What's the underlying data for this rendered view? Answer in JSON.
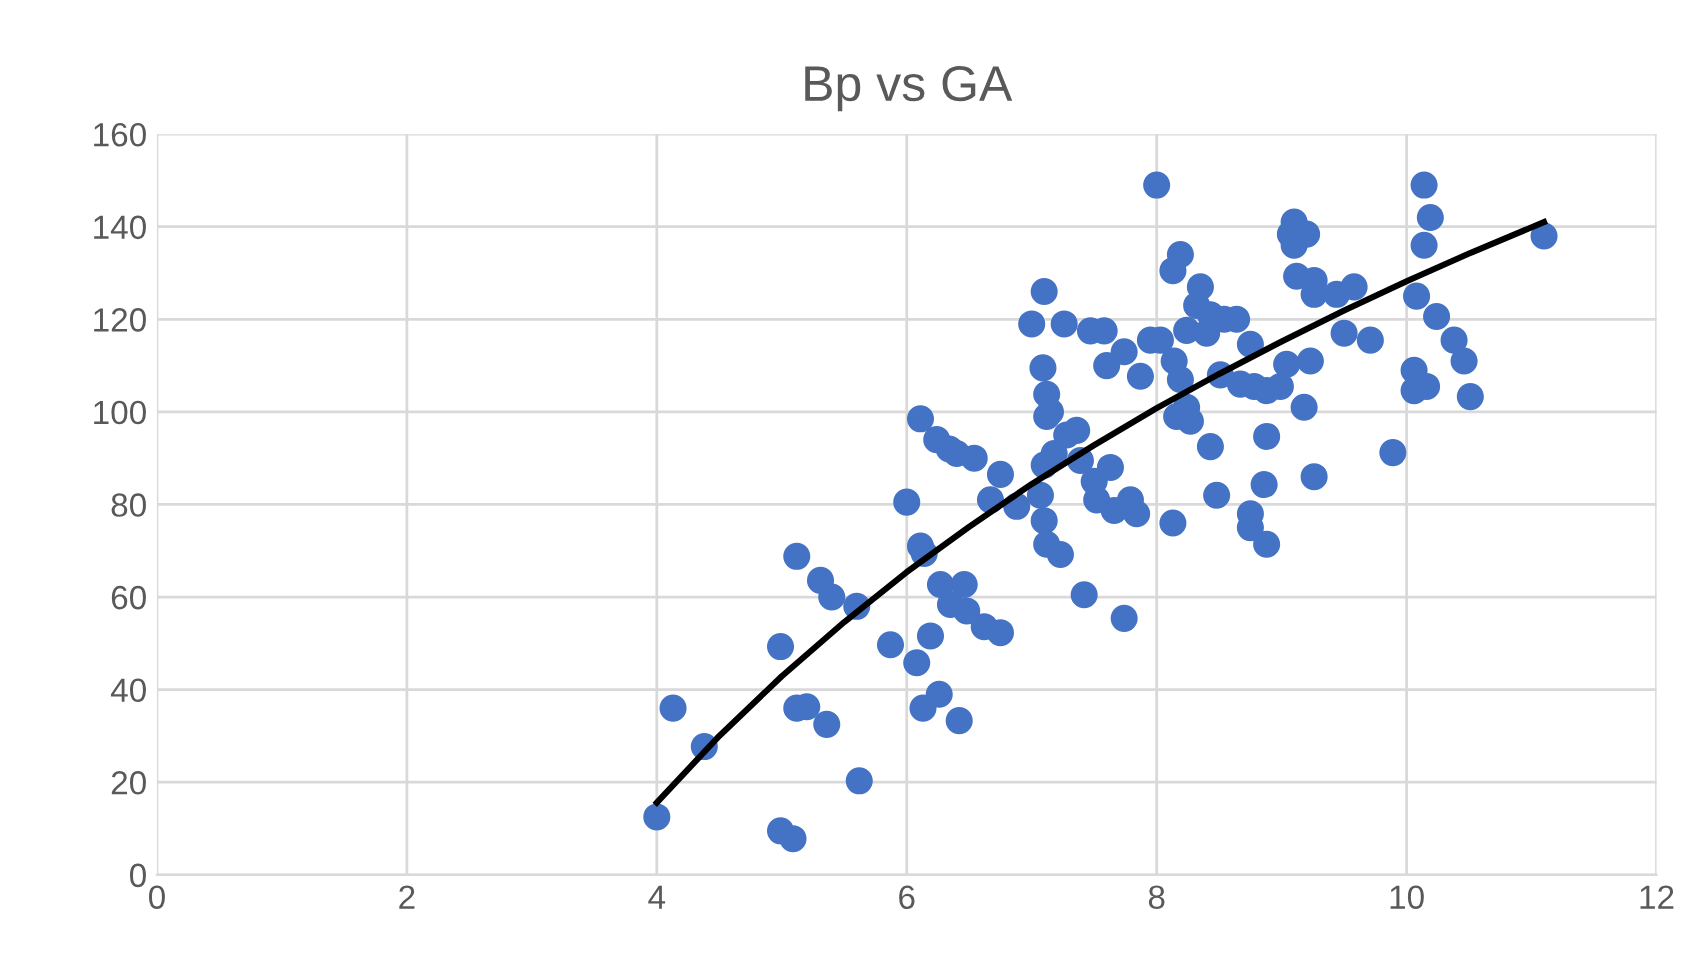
{
  "chart_data": {
    "type": "scatter",
    "title": "Bp vs GA",
    "xlim": [
      0,
      12
    ],
    "ylim": [
      0,
      160
    ],
    "xticks": [
      0,
      2,
      4,
      6,
      8,
      10,
      12
    ],
    "yticks": [
      0,
      20,
      40,
      60,
      80,
      100,
      120,
      140,
      160
    ],
    "grid": true,
    "series": [
      {
        "color": "#4472c4",
        "marker": "circle",
        "x": [
          4.0,
          4.13,
          4.38,
          4.99,
          4.99,
          5.09,
          5.12,
          5.12,
          5.2,
          5.31,
          5.4,
          5.36,
          5.6,
          5.62,
          5.87,
          6.0,
          6.08,
          6.11,
          6.14,
          6.11,
          6.13,
          6.19,
          6.26,
          6.24,
          6.27,
          6.34,
          6.35,
          6.4,
          6.42,
          6.46,
          6.48,
          6.54,
          6.62,
          6.67,
          6.75,
          6.75,
          6.88,
          7.0,
          7.09,
          7.1,
          7.1,
          7.07,
          7.1,
          7.12,
          7.12,
          7.12,
          7.15,
          7.23,
          7.18,
          7.28,
          7.26,
          7.36,
          7.39,
          7.42,
          7.47,
          7.5,
          7.52,
          7.58,
          7.6,
          7.63,
          7.66,
          7.74,
          7.74,
          7.79,
          7.84,
          7.87,
          7.95,
          8.0,
          8.03,
          8.13,
          8.14,
          8.19,
          8.19,
          8.24,
          8.27,
          8.16,
          8.24,
          8.35,
          8.32,
          8.4,
          8.43,
          8.43,
          8.48,
          8.13,
          8.51,
          8.54,
          8.64,
          8.67,
          8.75,
          8.78,
          8.88,
          8.88,
          8.86,
          8.75,
          8.75,
          8.88,
          8.99,
          9.04,
          9.1,
          9.07,
          9.1,
          9.2,
          9.12,
          9.26,
          9.23,
          9.18,
          9.26,
          9.26,
          9.44,
          9.5,
          9.58,
          9.71,
          9.89,
          10.06,
          10.06,
          10.08,
          10.14,
          10.14,
          10.16,
          10.19,
          10.24,
          10.38,
          10.46,
          10.51,
          11.1
        ],
        "values": [
          12.5,
          36,
          27.7,
          49.3,
          9.5,
          7.8,
          68.8,
          36,
          36.3,
          63.6,
          60,
          32.5,
          58,
          20.3,
          49.7,
          80.5,
          45.8,
          71,
          69.4,
          98.5,
          36,
          51.6,
          39,
          94,
          62.7,
          92,
          58.4,
          91,
          33.3,
          62.7,
          57,
          90,
          53.6,
          81,
          52.3,
          86.5,
          79.6,
          119,
          109.5,
          126,
          76.5,
          82,
          88.5,
          71.4,
          103.8,
          99,
          100,
          69.2,
          91,
          95,
          119,
          96,
          89.5,
          60.5,
          117.5,
          85,
          81,
          117.5,
          110,
          88,
          78.7,
          113,
          55.4,
          81,
          78,
          107.7,
          115.5,
          149,
          115.5,
          130.5,
          111,
          134,
          107,
          101,
          98,
          99,
          117.6,
          127,
          123,
          117,
          121,
          92.5,
          82,
          76,
          108,
          120,
          120,
          106,
          114.6,
          105.5,
          104.6,
          94.7,
          84.3,
          78,
          75,
          71.4,
          105.5,
          110.3,
          141,
          138.4,
          136,
          138.4,
          129.3,
          128.4,
          111,
          101,
          86,
          125.4,
          125.4,
          117,
          127,
          115.5,
          91.2,
          109,
          104.6,
          125,
          149,
          136,
          105.5,
          142,
          120.6,
          115.5,
          111,
          103.3,
          138
        ]
      },
      {
        "type": "line",
        "color": "#000000",
        "marker": "none",
        "x": [
          4.0,
          4.5,
          5.0,
          5.5,
          6.0,
          6.5,
          7.0,
          7.5,
          8.0,
          8.5,
          9.0,
          9.5,
          10.0,
          10.5,
          11.1
        ],
        "values": [
          15.6,
          30,
          42.9,
          54.6,
          65.4,
          75.2,
          84.4,
          92.8,
          100.8,
          108.2,
          115.2,
          121.9,
          128.2,
          134.2,
          141
        ]
      }
    ]
  }
}
